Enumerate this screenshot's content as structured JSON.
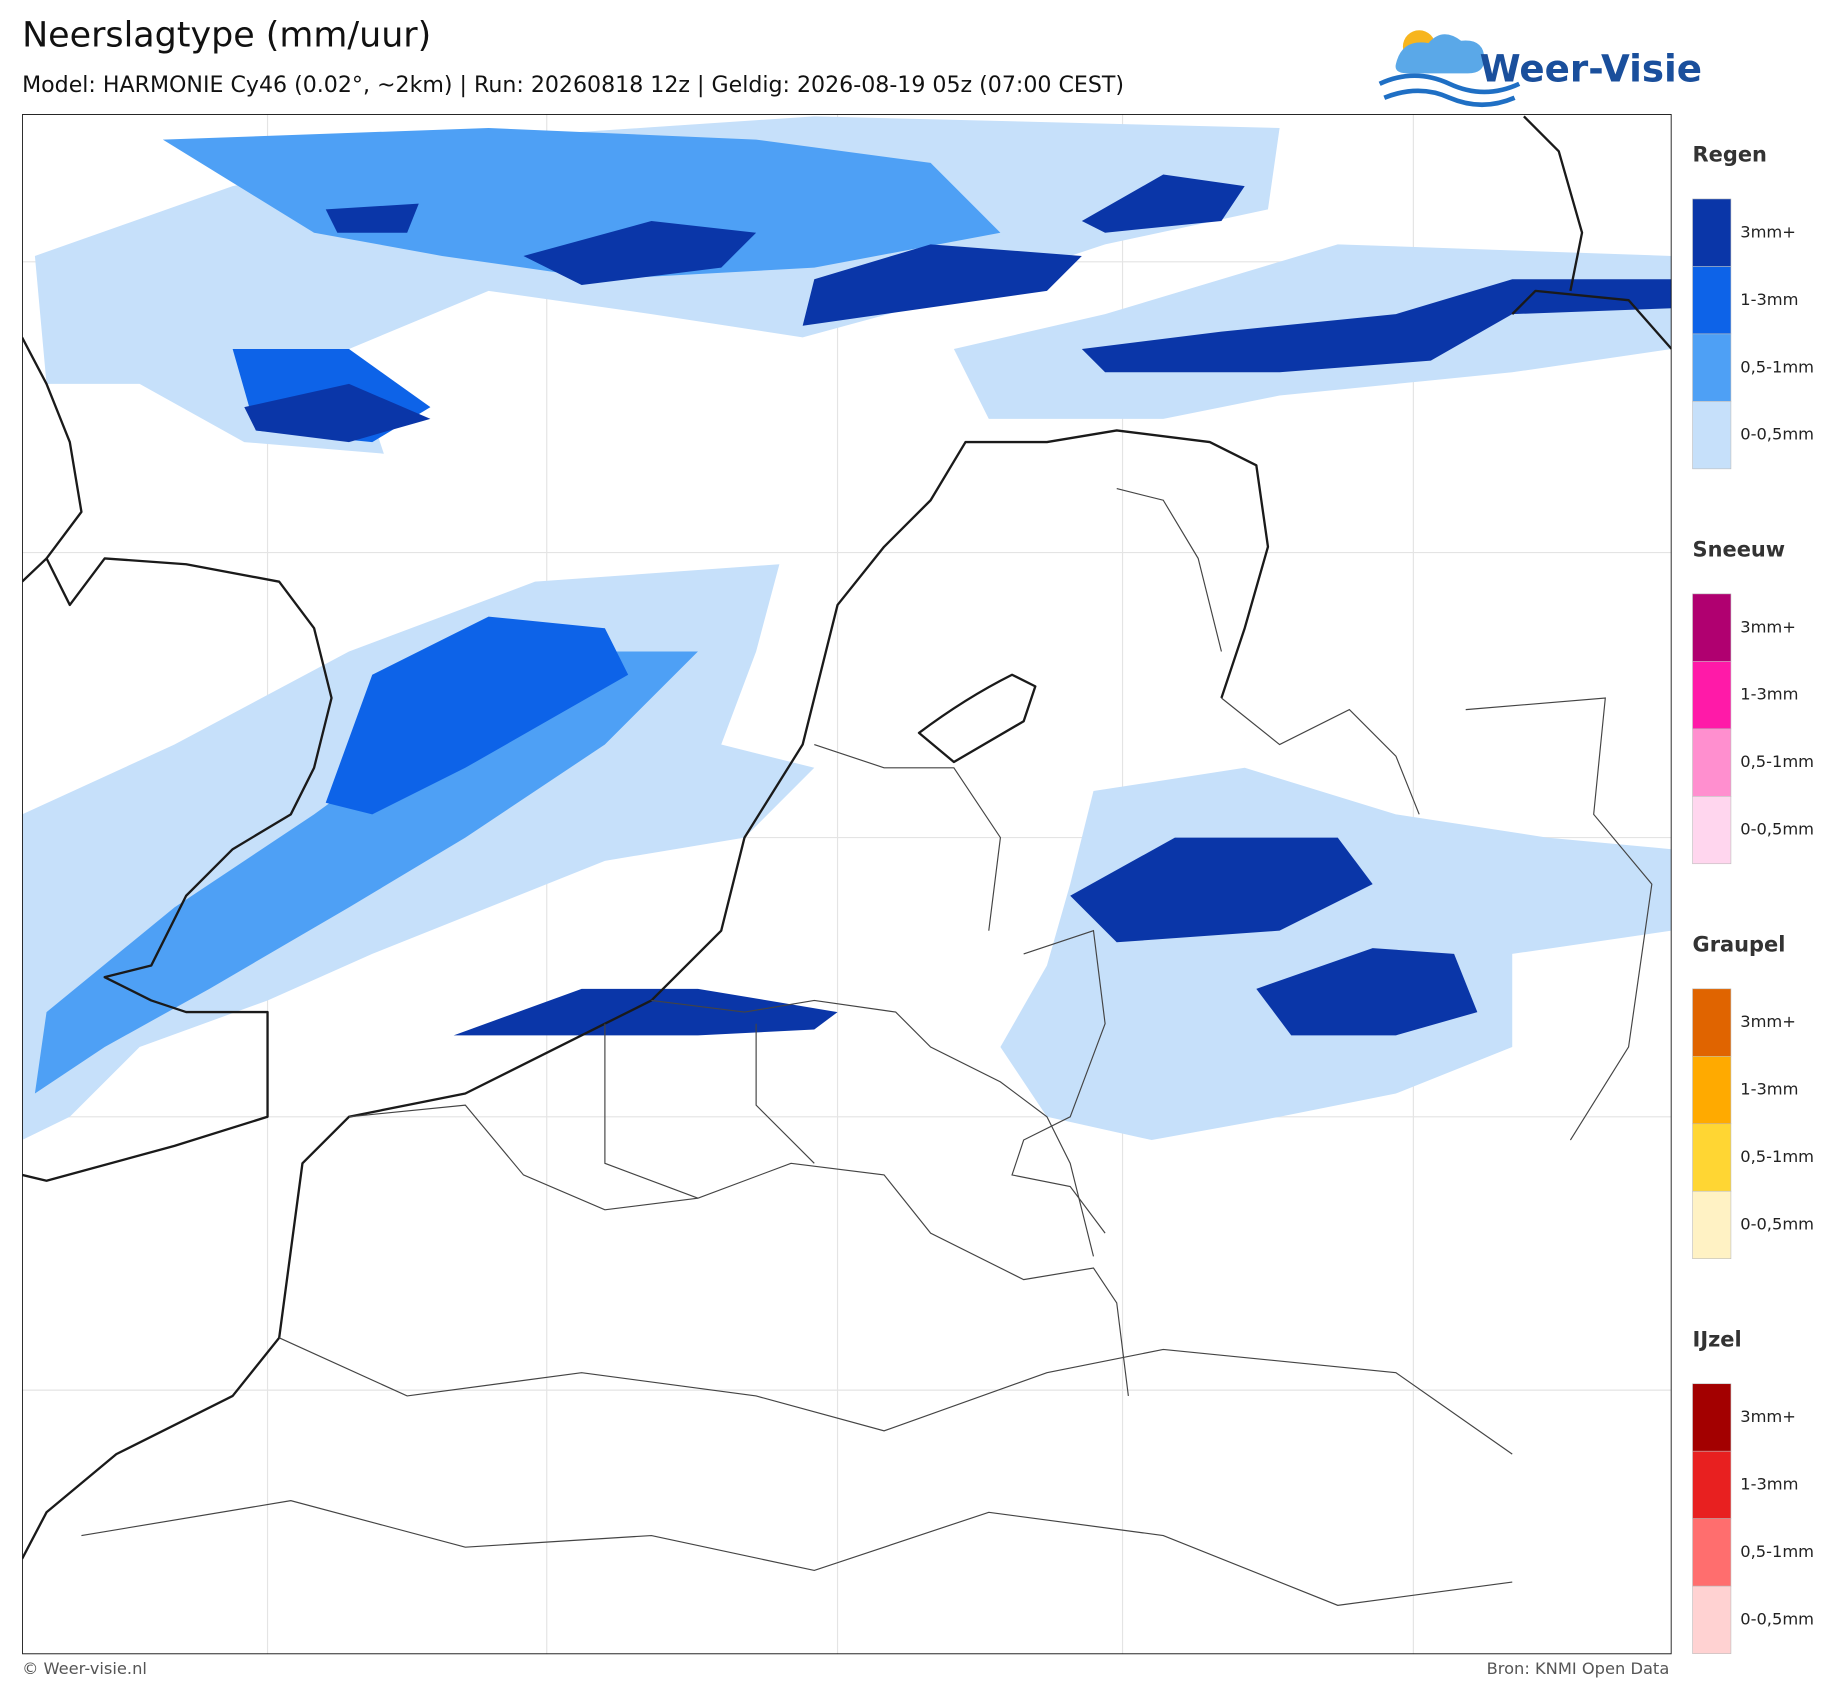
{
  "header": {
    "title": "Neerslagtype (mm/uur)",
    "subtitle": "Model: HARMONIE Cy46 (0.02°, ~2km)  |  Run: 20260818 12z  |  Geldig: 2026-08-19 05z (07:00 CEST)"
  },
  "logo": {
    "text": "Weer-Visie"
  },
  "legend": [
    {
      "title": "Regen",
      "items": [
        {
          "label": "3mm+",
          "color": "#0a36a8"
        },
        {
          "label": "1-3mm",
          "color": "#0d63e8"
        },
        {
          "label": "0,5-1mm",
          "color": "#4ea0f5"
        },
        {
          "label": "0-0,5mm",
          "color": "#c6e0fa"
        }
      ]
    },
    {
      "title": "Sneeuw",
      "items": [
        {
          "label": "3mm+",
          "color": "#b00070"
        },
        {
          "label": "1-3mm",
          "color": "#ff1aa8"
        },
        {
          "label": "0,5-1mm",
          "color": "#ff8fcf"
        },
        {
          "label": "0-0,5mm",
          "color": "#ffd6ee"
        }
      ]
    },
    {
      "title": "Graupel",
      "items": [
        {
          "label": "3mm+",
          "color": "#e06400"
        },
        {
          "label": "1-3mm",
          "color": "#ffaa00"
        },
        {
          "label": "0,5-1mm",
          "color": "#ffd633"
        },
        {
          "label": "0-0,5mm",
          "color": "#fff2c4"
        }
      ]
    },
    {
      "title": "IJzel",
      "items": [
        {
          "label": "3mm+",
          "color": "#a30000"
        },
        {
          "label": "1-3mm",
          "color": "#e82020"
        },
        {
          "label": "0,5-1mm",
          "color": "#ff6e6e"
        },
        {
          "label": "0-0,5mm",
          "color": "#ffd2d2"
        }
      ]
    }
  ],
  "footer": {
    "left": "© Weer-visie.nl",
    "right": "Bron: KNMI Open Data"
  }
}
